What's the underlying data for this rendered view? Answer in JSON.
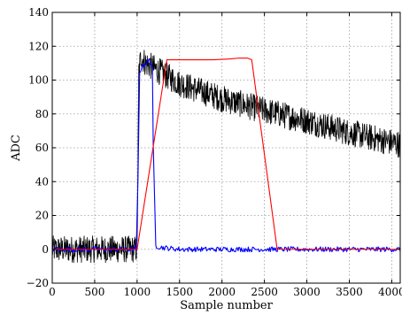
{
  "chart_data": {
    "type": "line",
    "xlabel": "Sample number",
    "ylabel": "ADC",
    "xlim": [
      0,
      4100
    ],
    "ylim": [
      -20,
      140
    ],
    "xticks": [
      0,
      500,
      1000,
      1500,
      2000,
      2500,
      3000,
      3500,
      4000
    ],
    "yticks": [
      -20,
      0,
      20,
      40,
      60,
      80,
      100,
      120,
      140
    ],
    "grid": true,
    "legend": "none",
    "series": [
      {
        "color": "#000000",
        "noise_amplitude": 8,
        "x": [
          0,
          1000,
          1020,
          1040,
          1050,
          1060,
          1100,
          1200,
          1500,
          2000,
          2500,
          3000,
          3500,
          4100
        ],
        "values": [
          0,
          0,
          105,
          112,
          115,
          113,
          110,
          107,
          98,
          89,
          82,
          76,
          69,
          62
        ]
      },
      {
        "color": "#0000ff",
        "noise_amplitude": 1.5,
        "x": [
          0,
          990,
          1010,
          1030,
          1060,
          1100,
          1150,
          1180,
          1190,
          1220,
          1300,
          1500,
          2000,
          2500,
          3000,
          3500,
          4100
        ],
        "values": [
          0,
          0,
          40,
          105,
          108,
          110,
          112,
          108,
          60,
          2,
          1,
          0,
          0,
          0,
          0,
          0,
          0
        ]
      },
      {
        "color": "#ff0000",
        "noise_amplitude": 0,
        "x": [
          0,
          1000,
          1350,
          1600,
          1700,
          1900,
          2100,
          2200,
          2300,
          2350,
          2650,
          3500,
          4100
        ],
        "values": [
          0,
          0,
          112,
          112,
          112,
          112,
          112.5,
          113,
          113,
          112,
          0,
          0,
          0
        ]
      }
    ]
  }
}
